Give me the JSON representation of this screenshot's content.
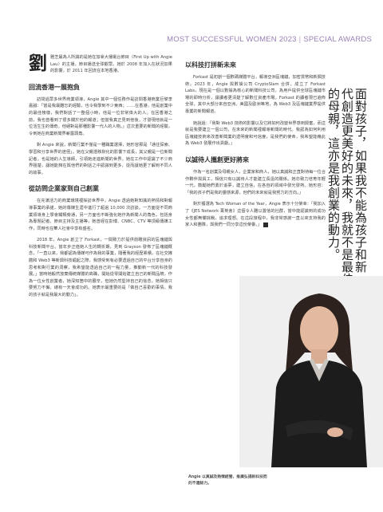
{
  "header": {
    "publication": "MOST SUCCESSFUL WOMEN 2023",
    "section": "SPECIAL AWARDS"
  },
  "intro": {
    "drop_cap": "劉",
    "text": "雅芝最為人所識的是她在加拿大播電台節目〈First Up with Angie Lau〉的主播，節目播送全球觀眾。她於 2008 年加入在狀況加果的影響，於 2011 年回流在本地香港。"
  },
  "sections": [
    {
      "heading": "回流香港一展抱負",
      "paragraphs": [
        "訪問過眾多世界商業領導，Angie 其中一個任務作是訪問香港商業巨擘李嘉誠：「當是我最難忘的經驗，也令我學到不少東西；……在香港，他是創業中的最佳榜樣，我們對話了一整個小時，他是一位非常偉大的人。在回香港之前，我也曾看到了很多關於他的報道；但當我真正見到他後，才發現他就是一位活生生的傳奇。他絕對是那種影響一代人的人物。」這次重要的新聞的經驗，令到她在商業新聞界嶄露頭角。",
        "對 Angie 來說，新聞行業不僅是一種職業選擇，她形容那是「通往探索、學習和分享世界的途徑」。她在父親潛移默化的影響下成長，其父親是一位新聞記者，也是她的人生導師，引領她走進新聞的世界。她在工作中認識了不少商界翹楚，讓她能夠在與他們的對話之中認識到更多，從而讓她更了解到不同人的故事。"
      ]
    },
    {
      "heading": "從訪問企業家到自己創業",
      "paragraphs": [
        "在充滿活力的商業環境裡採訪世界中，Angie 透過她對知識的熱情和對報導事業的承諾，她的傳媒生涯中進行了超過 10,000 次訪談。一方面從不同商業領導身上學會觸類旁通，另一方面也不斷強化她作為新聞人的角色，包括身為專題記者、節目主持及主播等，她曾經在彭博、CNBC、CTV 等頂級傳媒工作，同時也在華人社會中享有盛名。",
        "2018 年，Angie 創立了 Forkast，一間致力於提供前瞻資訊的區塊鏈與科技新聞平台。當年步正值她人生的轉折期，見到 Grayson 發佈了區塊鏈概念，「一直以來，我都認為傳媒可作為我的事業，隨著我的經歷累積，在社交媒體和 Web3 等新興科技崛起之際，我感受到有必要透過自己的平台分享自身的思考和對行業的洞察，我希望能透過自己的一點力量，推動新一代的科技發展。」當時她毅然放棄傳統媒體的高職，開始從零開始建立自己的新聞品牌，作為一位女性創業者，她深知箇中的艱辛，但她仍然堅持自己的信念，她相信只要努力不懈，總有一天會成功的。她表示最重要的是「做自己喜歡的事情，我的孩子就是我最大的動力」。"
      ]
    },
    {
      "heading": "以科技打拼新未來",
      "paragraphs": [
        "Forkast 是初創一個數碼媒體平台，報導亞洲區塊鏈，加密貨幣和新興技術。2023 年，Angie 與數據公司 CryptoSlam 合併，成立了 Forkast Labs，現在是一個以數據為核心的新聞科技公司，為用戶提供全球區塊鏈市場的即時分析，讓讀者更清楚了解數位資產市場。Forkast 的讀者現已遍佈全球，其中大部分來自亞洲、美國及歐洲等地，為 Web3 及區塊鏈業界提供專業的新聞報道。",
        "她說過：「我對 Web3 技術的影響以及它將如何改變世界感到興奮，而這就是我要建立一個公司，在未來的新聞裡報導新聞的時代。我認為如何利用區塊鏈技術來改善新聞業的透明度和可信度，是我們的使命，我希望能藉此為 Web3 發展作出貢獻。」"
      ]
    },
    {
      "heading": "以誠待人攜創更好將來",
      "paragraphs": [
        "作為一名創業及母親女人，企業家和商人，她以真誠和正直對待每一位合作夥伴與員工，相信只有以誠待人才能建立長遠的關係。她亦致力培育年輕一代，鼓勵她們勇於追夢，建立自信，在各自的領域中發光發熱。她形容：「我的孩子們是我的靈感來源，他們的未來就是我努力的方向。」",
        "對於獲選為 Tech Woman of the Year，Angie 表示十分榮幸：「我加入了《JES Network 菁英會》這個令人難以置信的社群，當中能認識到的成功女性都無懼挑戰，追求理想。在這段旅程中，我非常感謝一直以來支持我的家人和團隊，與我們一同分享這份榮譽。」"
      ]
    }
  ],
  "quote": "面對孩子，如果我不能為孩子和新一代創造更美好的未來，我就不是最佳的母親，這亦是我創業的動力。",
  "caption": "Angie 以真誠及熱情經營，推廣弘揚新科技而的不遺餘力。",
  "end_mark": "▶"
}
